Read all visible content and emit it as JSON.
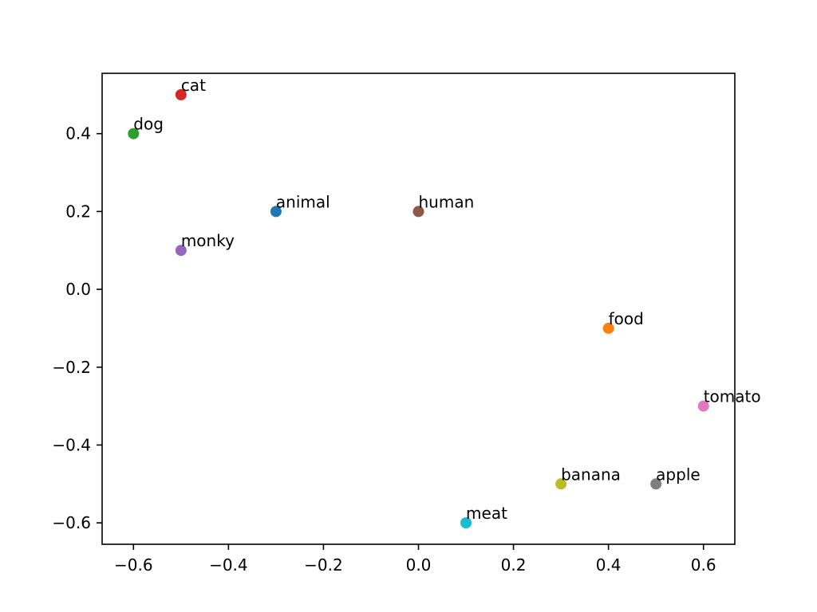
{
  "chart_data": {
    "type": "scatter",
    "title": "",
    "xlabel": "",
    "ylabel": "",
    "xlim": [
      -0.666,
      0.666
    ],
    "ylim": [
      -0.655,
      0.555
    ],
    "grid": false,
    "x_ticks": [
      -0.6,
      -0.4,
      -0.2,
      0.0,
      0.2,
      0.4,
      0.6
    ],
    "x_tick_labels": [
      "−0.6",
      "−0.4",
      "−0.2",
      "0.0",
      "0.2",
      "0.4",
      "0.6"
    ],
    "y_ticks": [
      -0.6,
      -0.4,
      -0.2,
      0.0,
      0.2,
      0.4
    ],
    "y_tick_labels": [
      "−0.6",
      "−0.4",
      "−0.2",
      "0.0",
      "0.2",
      "0.4"
    ],
    "points": [
      {
        "label": "animal",
        "x": -0.3,
        "y": 0.2,
        "color": "#1f77b4"
      },
      {
        "label": "food",
        "x": 0.4,
        "y": -0.1,
        "color": "#ff7f0e"
      },
      {
        "label": "dog",
        "x": -0.6,
        "y": 0.4,
        "color": "#2ca02c"
      },
      {
        "label": "cat",
        "x": -0.5,
        "y": 0.5,
        "color": "#d62728"
      },
      {
        "label": "monky",
        "x": -0.5,
        "y": 0.1,
        "color": "#9467bd"
      },
      {
        "label": "human",
        "x": 0.0,
        "y": 0.2,
        "color": "#8c564b"
      },
      {
        "label": "tomato",
        "x": 0.6,
        "y": -0.3,
        "color": "#e377c2"
      },
      {
        "label": "apple",
        "x": 0.5,
        "y": -0.5,
        "color": "#7f7f7f"
      },
      {
        "label": "banana",
        "x": 0.3,
        "y": -0.5,
        "color": "#bcbd22"
      },
      {
        "label": "meat",
        "x": 0.1,
        "y": -0.6,
        "color": "#17becf"
      }
    ]
  }
}
